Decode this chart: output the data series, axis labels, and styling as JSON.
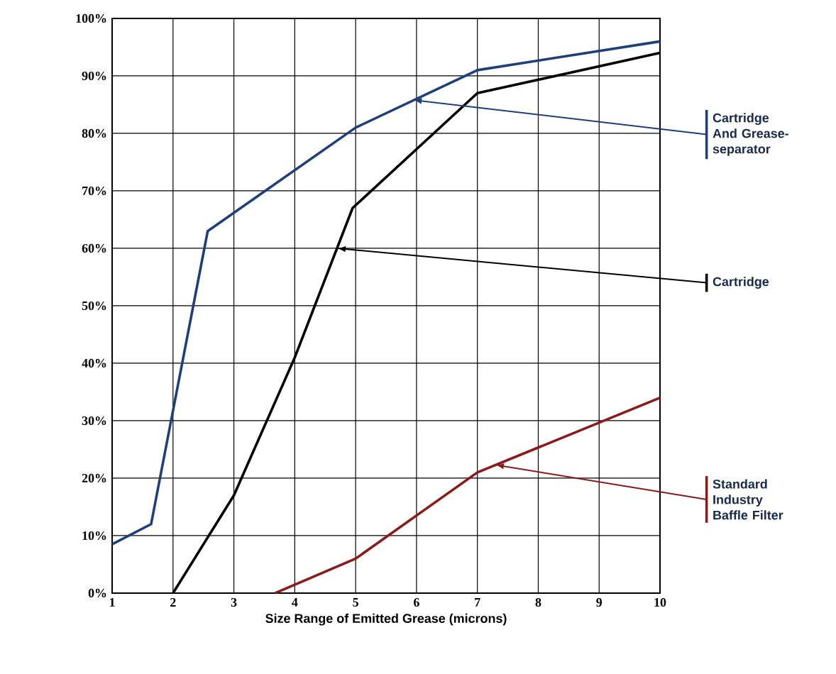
{
  "chart_data": {
    "type": "line",
    "xlabel": "Size Range of Emitted Grease (microns)",
    "xlim": [
      1,
      10
    ],
    "xticks": [
      1,
      2,
      3,
      4,
      5,
      6,
      7,
      8,
      9,
      10
    ],
    "ylim": [
      0,
      100
    ],
    "yticks": [
      {
        "value": 0,
        "label": "0%"
      },
      {
        "value": 10,
        "label": "10%"
      },
      {
        "value": 20,
        "label": "20%"
      },
      {
        "value": 30,
        "label": "30%"
      },
      {
        "value": 40,
        "label": "40%"
      },
      {
        "value": 50,
        "label": "50%"
      },
      {
        "value": 60,
        "label": "60%"
      },
      {
        "value": 70,
        "label": "70%"
      },
      {
        "value": 80,
        "label": "80%"
      },
      {
        "value": 90,
        "label": "90%"
      },
      {
        "value": 100,
        "label": "100%"
      }
    ],
    "grid": true,
    "series": [
      {
        "color": "#1f3f7a",
        "x": [
          1,
          1.64,
          2.57,
          5,
          7,
          10
        ],
        "values": [
          8.5,
          12,
          63,
          81,
          91,
          96
        ]
      },
      {
        "color": "#000000",
        "x": [
          2,
          3,
          4,
          4.95,
          7,
          10
        ],
        "values": [
          0,
          17,
          41,
          67,
          87,
          94
        ]
      },
      {
        "color": "#8b1a1a",
        "x": [
          3.68,
          5,
          7,
          10
        ],
        "values": [
          0,
          6,
          21,
          34
        ]
      }
    ],
    "annotations": [
      {
        "text": "Cartridge And Grease-separator",
        "x": 5.95,
        "y": 85.8
      },
      {
        "text": "Cartridge",
        "x": 4.7,
        "y": 60
      },
      {
        "text": "Standard Industry Baffle Filter",
        "x": 7.3,
        "y": 22.3
      }
    ]
  }
}
